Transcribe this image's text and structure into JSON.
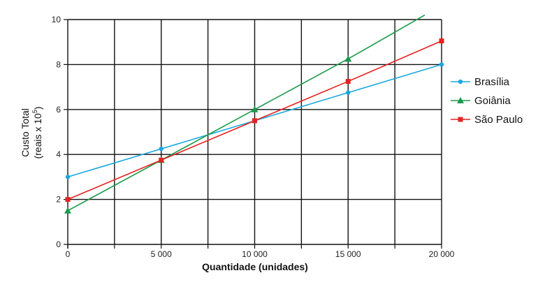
{
  "chart_data": {
    "type": "line",
    "xlabel": "Quantidade (unidades)",
    "ylabel_line1": "Custo Total",
    "ylabel_line2": "(reais x 10",
    "ylabel_exp": "5",
    "ylabel_close": ")",
    "xlim": [
      0,
      20000
    ],
    "ylim": [
      0,
      10
    ],
    "x_major_ticks": [
      0,
      5000,
      10000,
      15000,
      20000
    ],
    "x_tick_labels": [
      "0",
      "5 000",
      "10 000",
      "15 000",
      "20 000"
    ],
    "x_gridlines": [
      2500,
      5000,
      7500,
      10000,
      12500,
      15000,
      17500,
      20000
    ],
    "y_ticks": [
      0,
      2,
      4,
      6,
      8,
      10
    ],
    "y_tick_labels": [
      "0",
      "2",
      "4",
      "6",
      "8",
      "10"
    ],
    "grid": true,
    "legend_position": "right",
    "x": [
      0,
      5000,
      10000,
      15000,
      20000
    ],
    "series": [
      {
        "name": "Brasília",
        "color": "#1aa7e0",
        "marker": "circle",
        "points": [
          [
            0,
            3.0
          ],
          [
            5000,
            4.25
          ],
          [
            10000,
            5.5
          ],
          [
            15000,
            6.75
          ],
          [
            20000,
            8.0
          ]
        ]
      },
      {
        "name": "Goiânia",
        "color": "#1a9a4a",
        "marker": "triangle",
        "points": [
          [
            0,
            1.5
          ],
          [
            5000,
            3.75
          ],
          [
            10000,
            6.0
          ],
          [
            15000,
            8.25
          ],
          [
            19100,
            10.2
          ]
        ]
      },
      {
        "name": "São Paulo",
        "color": "#e52320",
        "marker": "square",
        "points": [
          [
            0,
            2.0
          ],
          [
            5000,
            3.75
          ],
          [
            10000,
            5.5
          ],
          [
            15000,
            7.25
          ],
          [
            20000,
            9.05
          ]
        ]
      }
    ]
  }
}
